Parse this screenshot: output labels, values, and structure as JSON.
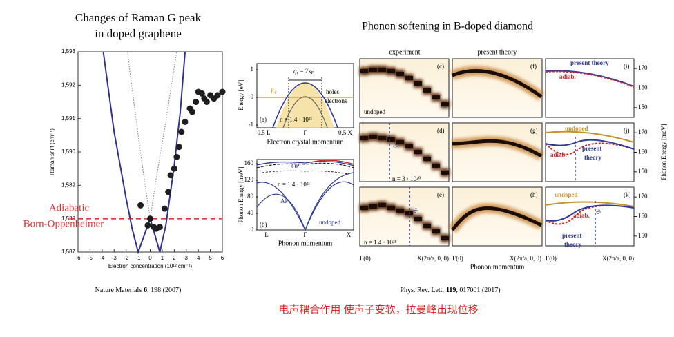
{
  "left": {
    "title": [
      "Changes of Raman G peak",
      "in doped graphene"
    ],
    "annotation": [
      "Adiabatic",
      "Born-Oppenheimer"
    ],
    "citation": {
      "journal": "Nature Materials",
      "volume": "6",
      "rest": ", 198 (2007)"
    }
  },
  "chart_data": {
    "type": "scatter",
    "xlabel": "Electron concentration (10¹² cm⁻²)",
    "ylabel": "Raman shift (cm⁻¹)",
    "xlim": [
      -6,
      6
    ],
    "xticks": [
      -6,
      -5,
      -4,
      -3,
      -2,
      -1,
      0,
      1,
      2,
      3,
      4,
      5,
      6
    ],
    "ylim": [
      1587,
      1593
    ],
    "yticks": [
      {
        "value": 1587,
        "label": "1,587"
      },
      {
        "value": 1588,
        "label": "1,588"
      },
      {
        "value": 1589,
        "label": "1,589"
      },
      {
        "value": 1590,
        "label": "1,590"
      },
      {
        "value": 1591,
        "label": "1,591"
      },
      {
        "value": 1592,
        "label": "1,592"
      },
      {
        "value": 1593,
        "label": "1,593"
      }
    ],
    "x": [
      -0.8,
      0,
      -0.2,
      0.3,
      0.5,
      0.8,
      1.2,
      1.5,
      1.7,
      2.0,
      2.2,
      2.4,
      2.6,
      2.9,
      3.3,
      3.5,
      3.8,
      4.0,
      4.3,
      4.5,
      4.7,
      5.0,
      5.3,
      5.6,
      6.0
    ],
    "values": [
      1588.4,
      1588.0,
      1587.8,
      1587.75,
      1587.7,
      1587.75,
      1588.3,
      1588.8,
      1589.3,
      1589.5,
      1589.85,
      1590.15,
      1590.6,
      1590.9,
      1591.3,
      1591.2,
      1591.5,
      1591.8,
      1591.75,
      1591.6,
      1591.5,
      1591.7,
      1591.6,
      1591.7,
      1591.8
    ],
    "color": "#1e1e1e",
    "curves": [
      {
        "color": "#2e3192",
        "dash": false,
        "x": [
          -3.9,
          -3,
          -2,
          -1.5,
          -1,
          -0.5,
          0,
          0.4,
          0.8,
          1.3,
          2,
          2.5,
          2.9
        ],
        "values": [
          1593,
          1590.6,
          1588.6,
          1587.7,
          1587.0,
          1587.5,
          1588.0,
          1587.5,
          1587.0,
          1587.8,
          1589.6,
          1591.2,
          1593
        ]
      },
      {
        "color": "#777777",
        "dash": true,
        "x": [
          -1.9,
          -1,
          -0.5,
          0,
          0.5,
          1.2,
          2.2
        ],
        "values": [
          1593,
          1590.5,
          1589.2,
          1588,
          1589.2,
          1590.7,
          1593
        ]
      }
    ],
    "hline": 1588,
    "hline_color": "#e03030"
  },
  "right": {
    "title": "Phonon softening in B-doped diamond",
    "columns": [
      "experiment",
      "present theory"
    ],
    "panels": [
      "(a)",
      "(b)",
      "(c)",
      "(d)",
      "(e)",
      "(f)",
      "(g)",
      "(h)",
      "(i)",
      "(j)",
      "(k)"
    ],
    "band_plot": {
      "ylabel": "Energy [eV]",
      "ylim": [
        -1,
        1
      ],
      "yticks": [
        1,
        0,
        -1
      ],
      "xticks": [
        "0.5 L",
        "Γ",
        "0.5 X"
      ],
      "xlabel": "Electron crystal momentum",
      "fermi": [
        "E",
        "F"
      ],
      "qc": [
        "q",
        "c",
        " = 2k",
        "F"
      ],
      "holes": "holes",
      "electrons": "electrons",
      "n": "n = 1.4 · 10²¹"
    },
    "dispersion_plot": {
      "ylabel": "Phonon Energy [meV]",
      "ylim": [
        0,
        170
      ],
      "yticks": [
        0,
        40,
        80,
        120,
        160
      ],
      "xticks": [
        "L",
        "Γ",
        "X"
      ],
      "xlabel": "Phonon momentum",
      "labels": [
        "OP",
        "AP",
        "undoped",
        "n = 1.4 · 10²¹"
      ]
    },
    "maps": {
      "labels": [
        "undoped",
        "n = 3 · 10²⁰",
        "n = 1.4 · 10²¹"
      ],
      "qc": [
        "q",
        "c"
      ],
      "xticks": [
        "Γ(0)",
        "X(2π/a, 0, 0)"
      ],
      "xlabel": "Phonon momentum"
    },
    "lines": {
      "ylabel": "Phonon Energy [meV]",
      "ylim": [
        145,
        175
      ],
      "yticks": [
        170,
        160,
        150
      ],
      "labels": [
        "present theory",
        "adiab.",
        "undoped",
        "present",
        "theory"
      ]
    },
    "citation": {
      "journal": "Phys. Rev. Lett.",
      "volume": "119",
      "rest": ", 017001 (2017)"
    }
  },
  "caption": "电声耦合作用  使声子变软，拉曼峰出现位移"
}
